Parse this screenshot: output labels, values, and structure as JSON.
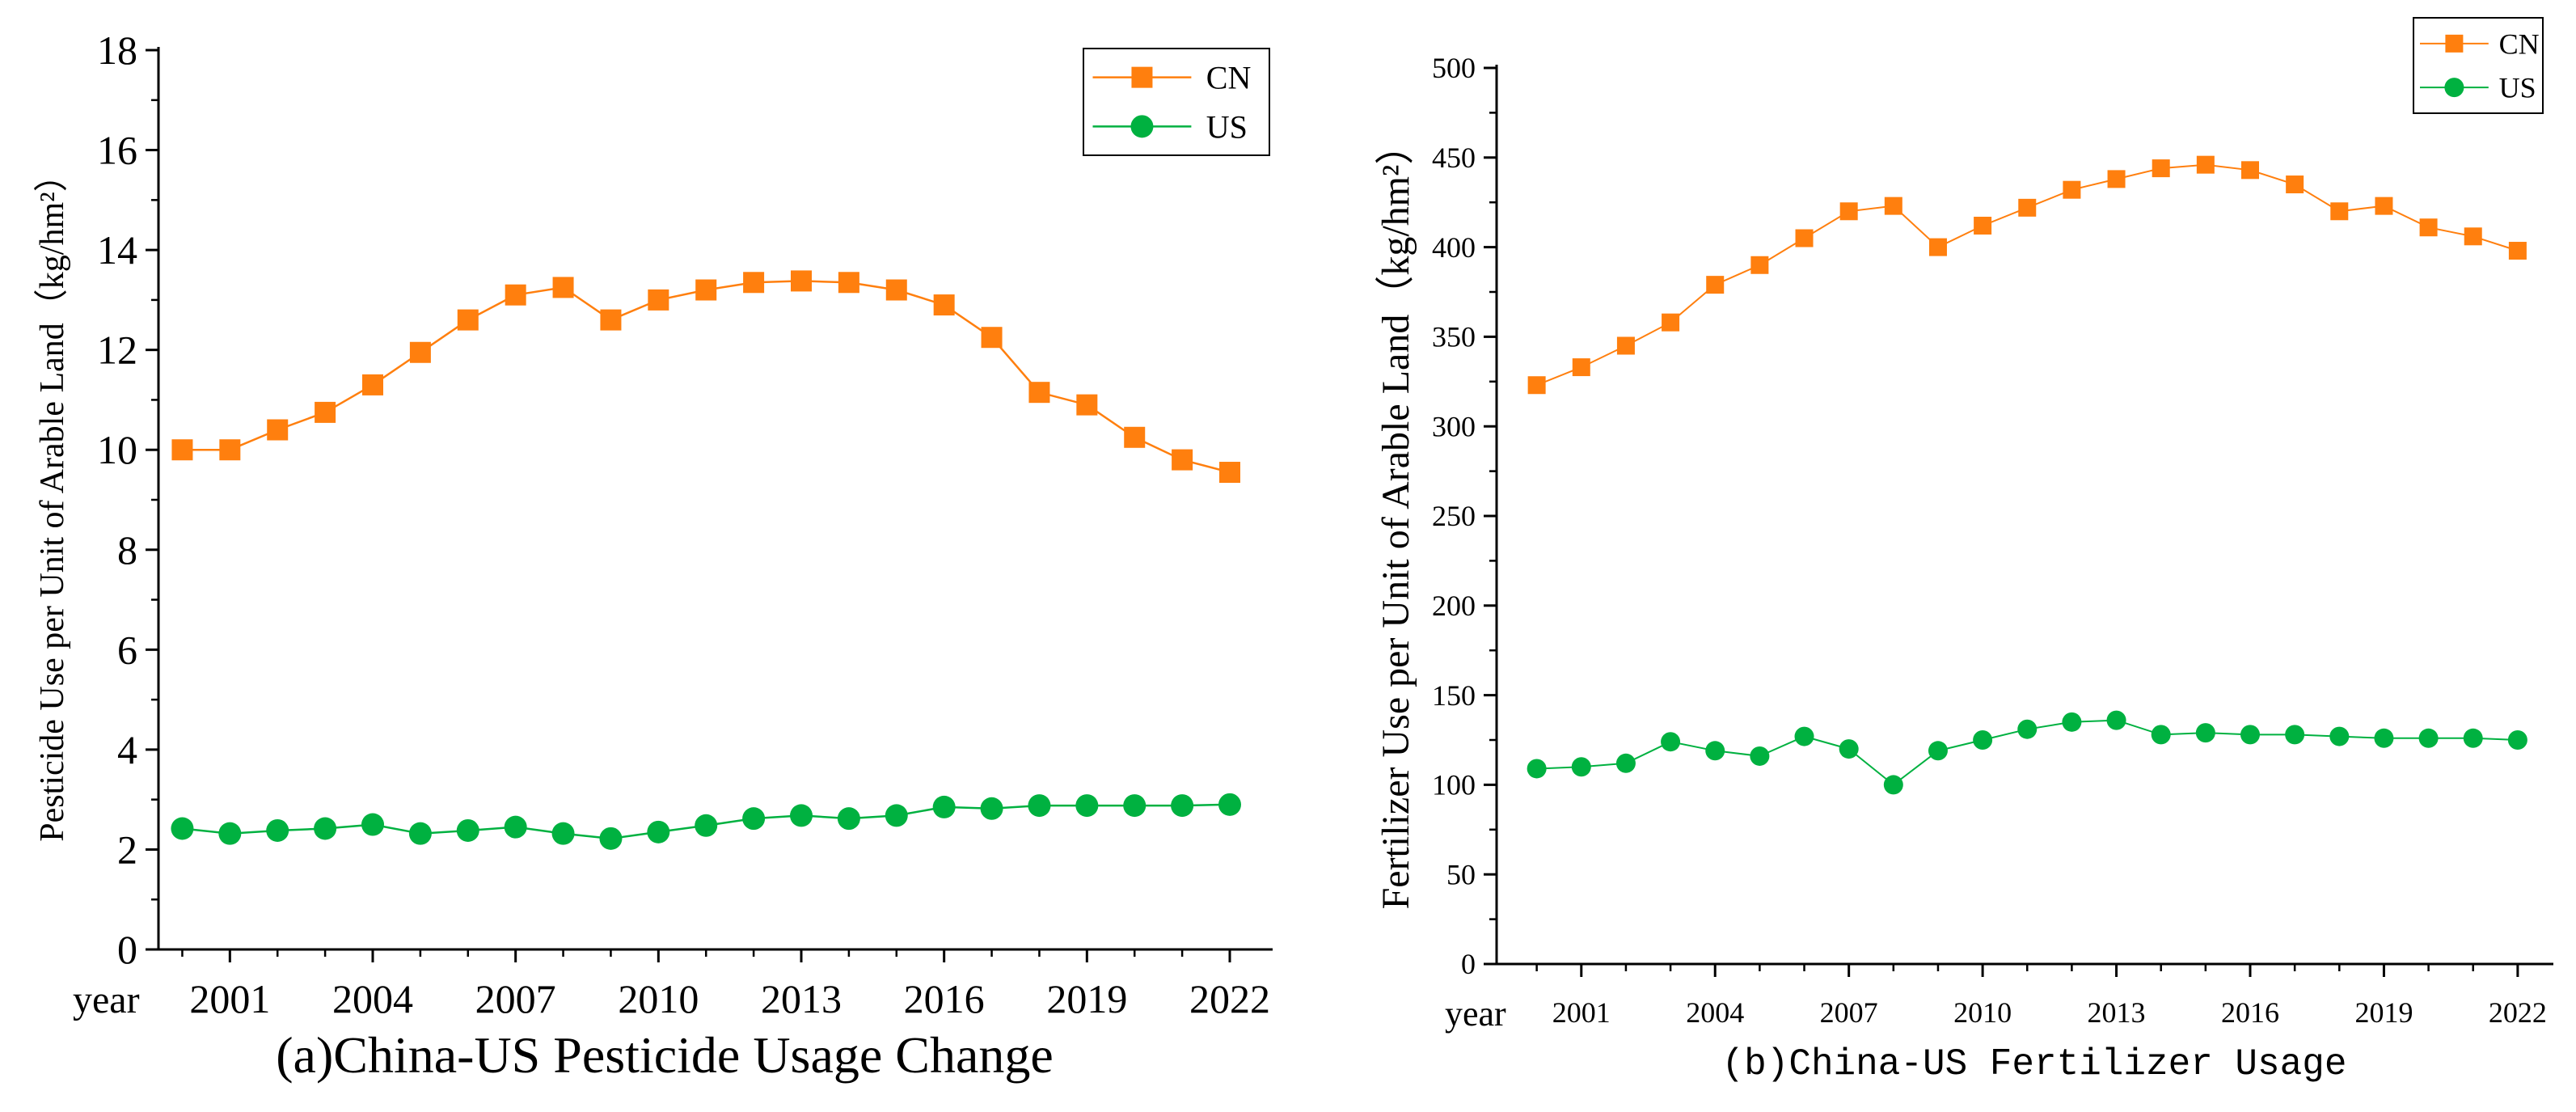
{
  "colors": {
    "cn": "#ff7f0e",
    "us": "#00b140",
    "axis": "#000000"
  },
  "chart_data": [
    {
      "id": "pesticide",
      "type": "line",
      "title": "(a)China-US Pesticide Usage Change",
      "xlabel": "year",
      "ylabel": "Pesticide Use per Unit of Arable Land（kg/hm²）",
      "xlim": [
        1999.5,
        2022.9
      ],
      "ylim": [
        0,
        18
      ],
      "yticks": [
        0,
        2,
        4,
        6,
        8,
        10,
        12,
        14,
        16,
        18
      ],
      "xticks": [
        2001,
        2004,
        2007,
        2010,
        2013,
        2016,
        2019,
        2022
      ],
      "x": [
        2000,
        2001,
        2002,
        2003,
        2004,
        2005,
        2006,
        2007,
        2008,
        2009,
        2010,
        2011,
        2012,
        2013,
        2014,
        2015,
        2016,
        2017,
        2018,
        2019,
        2020,
        2021,
        2022
      ],
      "legend": {
        "position": "top-right",
        "entries": [
          "CN",
          "US"
        ]
      },
      "series": [
        {
          "name": "CN",
          "marker": "square",
          "values": [
            10.0,
            10.0,
            10.4,
            10.75,
            11.3,
            11.95,
            12.6,
            13.1,
            13.25,
            12.6,
            13.0,
            13.2,
            13.35,
            13.38,
            13.35,
            13.2,
            12.9,
            12.25,
            11.15,
            10.9,
            10.25,
            9.8,
            9.55
          ]
        },
        {
          "name": "US",
          "marker": "circle",
          "values": [
            2.42,
            2.32,
            2.38,
            2.42,
            2.5,
            2.32,
            2.38,
            2.45,
            2.32,
            2.22,
            2.35,
            2.48,
            2.62,
            2.68,
            2.62,
            2.68,
            2.85,
            2.82,
            2.88,
            2.88,
            2.88,
            2.88,
            2.9
          ]
        }
      ]
    },
    {
      "id": "fertilizer",
      "type": "line",
      "title": "(b)China-US Fertilizer Usage",
      "xlabel": "year",
      "ylabel": "Fertilizer Use per Unit of Arable Land（kg/hm²）",
      "xlim": [
        1999.1,
        2022.8
      ],
      "ylim": [
        0,
        500
      ],
      "yticks": [
        0,
        50,
        100,
        150,
        200,
        250,
        300,
        350,
        400,
        450,
        500
      ],
      "xticks": [
        2001,
        2004,
        2007,
        2010,
        2013,
        2016,
        2019,
        2022
      ],
      "x": [
        2000,
        2001,
        2002,
        2003,
        2004,
        2005,
        2006,
        2007,
        2008,
        2009,
        2010,
        2011,
        2012,
        2013,
        2014,
        2015,
        2016,
        2017,
        2018,
        2019,
        2020,
        2021,
        2022
      ],
      "legend": {
        "position": "top-right",
        "entries": [
          "CN",
          "US"
        ]
      },
      "series": [
        {
          "name": "CN",
          "marker": "square",
          "values": [
            323,
            333,
            345,
            358,
            379,
            390,
            405,
            420,
            423,
            400,
            412,
            422,
            432,
            438,
            444,
            446,
            443,
            435,
            420,
            423,
            411,
            406,
            398
          ]
        },
        {
          "name": "US",
          "marker": "circle",
          "values": [
            109,
            110,
            112,
            124,
            119,
            116,
            127,
            120,
            100,
            119,
            125,
            131,
            135,
            136,
            128,
            129,
            128,
            128,
            127,
            126,
            126,
            126,
            125
          ]
        }
      ]
    }
  ]
}
